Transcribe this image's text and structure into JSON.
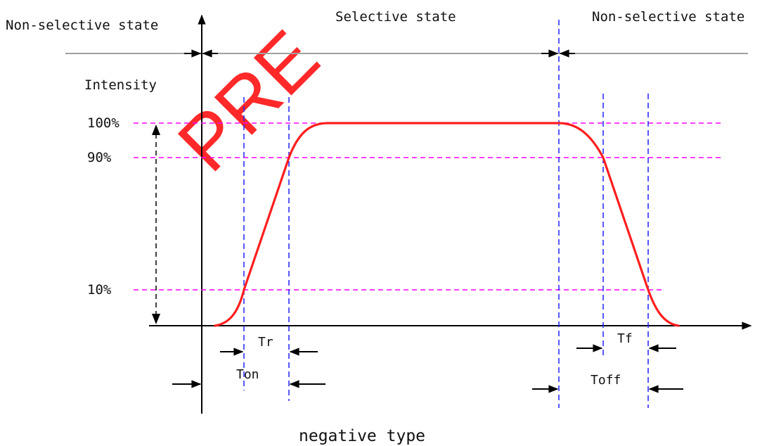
{
  "states": {
    "left": "Non-selective state",
    "middle": "Selective state",
    "right": "Non-selective state"
  },
  "axis": {
    "y_label": "Intensity"
  },
  "levels": [
    {
      "label": "100%",
      "value": 100
    },
    {
      "label": "90%",
      "value": 90
    },
    {
      "label": "10%",
      "value": 10
    }
  ],
  "timings": {
    "tr": "Tr",
    "ton": "Ton",
    "tf": "Tf",
    "toff": "Toff"
  },
  "caption": "negative type",
  "watermark": "PRE",
  "colors": {
    "curve": "#ff1e1e",
    "level_lines": "#ff00ff",
    "time_lines": "#2020ff",
    "state_line": "#a0a0a0",
    "axes": "#000000",
    "watermark": "#ff1e1e"
  }
}
